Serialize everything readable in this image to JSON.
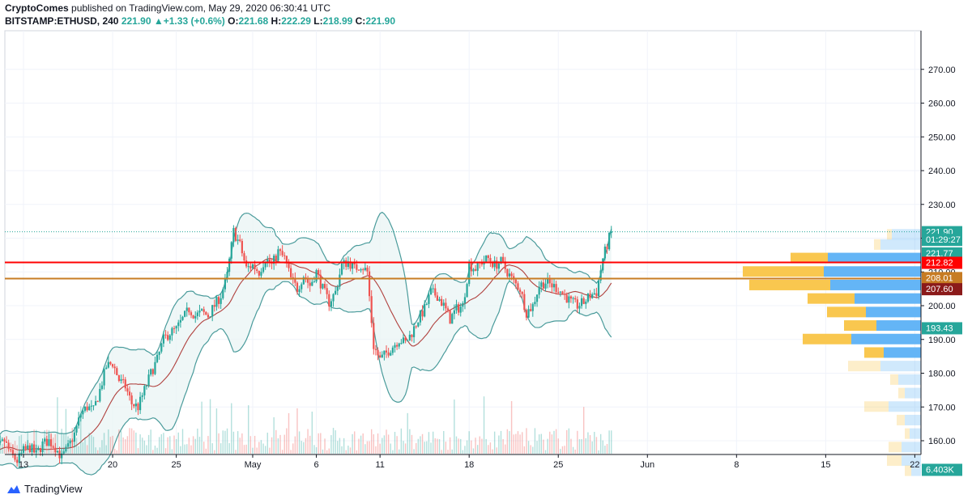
{
  "header": {
    "author": "CryptoComes",
    "published_text": "published on TradingView.com, May 29, 2020 06:30:41 UTC",
    "symbol": "BITSTAMP:ETHUSD, 240",
    "last": "221.90",
    "change": "+1.33 (+0.6%)",
    "o_label": "O:",
    "o": "221.68",
    "h_label": "H:",
    "h": "222.29",
    "l_label": "L:",
    "l": "218.99",
    "c_label": "C:",
    "c": "221.90"
  },
  "footer": {
    "brand": "TradingView"
  },
  "colors": {
    "up": "#26a69a",
    "down": "#ef5350",
    "band": "#4a9b9b",
    "basis": "#b0413e",
    "red_line": "#ff0000",
    "orange_line": "#c77c24",
    "vp_yellow": "#f9c74f",
    "vp_blue": "#64b5f6"
  },
  "chart_data": {
    "type": "candlestick",
    "symbol": "BITSTAMP:ETHUSD",
    "ylim": [
      150,
      272
    ],
    "yticks": [
      160,
      170,
      180,
      190,
      200,
      210,
      220,
      230,
      240,
      250,
      260,
      270
    ],
    "ytick_labels": [
      "160.00",
      "170.00",
      "180.00",
      "190.00",
      "200.00",
      "210.00",
      "220.00",
      "230.00",
      "240.00",
      "250.00",
      "260.00",
      "270.00"
    ],
    "xticks": [
      {
        "label": "13",
        "day": 13
      },
      {
        "label": "20",
        "day": 20
      },
      {
        "label": "25",
        "day": 25
      },
      {
        "label": "May",
        "day": 31
      },
      {
        "label": "6",
        "day": 36
      },
      {
        "label": "11",
        "day": 41
      },
      {
        "label": "18",
        "day": 48
      },
      {
        "label": "25",
        "day": 55
      },
      {
        "label": "Jun",
        "day": 62
      },
      {
        "label": "8",
        "day": 69
      },
      {
        "label": "15",
        "day": 76
      },
      {
        "label": "22",
        "day": 83
      }
    ],
    "day_axis_note": "",
    "horizontal_lines": [
      {
        "price": 212.82,
        "color": "#ff0000"
      },
      {
        "price": 208.01,
        "color": "#c77c24"
      }
    ],
    "last_price_line": 221.9,
    "price_labels": [
      {
        "text": "221.90",
        "price": 221.9,
        "color": "#26a69a"
      },
      {
        "text": "01:29:27",
        "price": 219.6,
        "color": "#26a69a"
      },
      {
        "text": "221.77",
        "price": 215.6,
        "color": "#26a69a"
      },
      {
        "text": "212.82",
        "price": 212.82,
        "color": "#ff0000"
      },
      {
        "text": "208.01",
        "price": 208.3,
        "color": "#c77c24"
      },
      {
        "text": "207.60",
        "price": 205.0,
        "color": "#8b1a1a"
      },
      {
        "text": "193.43",
        "price": 193.43,
        "color": "#26a69a"
      },
      {
        "text": "6.403K",
        "price": 151.5,
        "color": "#26a69a"
      }
    ],
    "close_path": [
      [
        10,
        157
      ],
      [
        10.5,
        155
      ],
      [
        11,
        158
      ],
      [
        11.5,
        160
      ],
      [
        12,
        156
      ],
      [
        12.5,
        154
      ],
      [
        13,
        157
      ],
      [
        13.5,
        158
      ],
      [
        14,
        156
      ],
      [
        14.5,
        159
      ],
      [
        15,
        160
      ],
      [
        15.5,
        158
      ],
      [
        16,
        155
      ],
      [
        16.5,
        158
      ],
      [
        17,
        162
      ],
      [
        17.5,
        168
      ],
      [
        18,
        170
      ],
      [
        18.5,
        169
      ],
      [
        19,
        175
      ],
      [
        19.5,
        182
      ],
      [
        20,
        183
      ],
      [
        20.5,
        178
      ],
      [
        21,
        176
      ],
      [
        21.5,
        171
      ],
      [
        22,
        170
      ],
      [
        22.5,
        175
      ],
      [
        23,
        180
      ],
      [
        23.5,
        184
      ],
      [
        24,
        190
      ],
      [
        24.5,
        192
      ],
      [
        25,
        193
      ],
      [
        25.5,
        196
      ],
      [
        26,
        199
      ],
      [
        26.5,
        197
      ],
      [
        27,
        198
      ],
      [
        27.5,
        197
      ],
      [
        28,
        200
      ],
      [
        28.5,
        203
      ],
      [
        29,
        209
      ],
      [
        29.5,
        222
      ],
      [
        30,
        218
      ],
      [
        30.5,
        211
      ],
      [
        31,
        212
      ],
      [
        31.5,
        210
      ],
      [
        32,
        214
      ],
      [
        32.5,
        212
      ],
      [
        33,
        216
      ],
      [
        33.5,
        214
      ],
      [
        34,
        208
      ],
      [
        34.5,
        205
      ],
      [
        35,
        209
      ],
      [
        35.5,
        206
      ],
      [
        36,
        210
      ],
      [
        36.5,
        205
      ],
      [
        37,
        201
      ],
      [
        37.5,
        204
      ],
      [
        38,
        212
      ],
      [
        38.5,
        213
      ],
      [
        39,
        211
      ],
      [
        39.5,
        212
      ],
      [
        40,
        210
      ],
      [
        40.5,
        188
      ],
      [
        41,
        184
      ],
      [
        41.5,
        186
      ],
      [
        42,
        188
      ],
      [
        42.5,
        190
      ],
      [
        43,
        189
      ],
      [
        43.5,
        192
      ],
      [
        44,
        196
      ],
      [
        44.5,
        199
      ],
      [
        45,
        204
      ],
      [
        45.5,
        203
      ],
      [
        46,
        200
      ],
      [
        46.5,
        196
      ],
      [
        47,
        199
      ],
      [
        47.5,
        200
      ],
      [
        48,
        212
      ],
      [
        48.5,
        211
      ],
      [
        49,
        213
      ],
      [
        49.5,
        214
      ],
      [
        50,
        212
      ],
      [
        50.5,
        213
      ],
      [
        51,
        210
      ],
      [
        51.5,
        207
      ],
      [
        52,
        205
      ],
      [
        52.5,
        198
      ],
      [
        53,
        200
      ],
      [
        53.5,
        206
      ],
      [
        54,
        207
      ],
      [
        54.5,
        206
      ],
      [
        55,
        205
      ],
      [
        55.5,
        203
      ],
      [
        56,
        201
      ],
      [
        56.5,
        200
      ],
      [
        57,
        201
      ],
      [
        57.5,
        203
      ],
      [
        58,
        204
      ],
      [
        58.5,
        214
      ],
      [
        59,
        220
      ],
      [
        59.2,
        221.9
      ]
    ],
    "volume_profile": [
      {
        "price": 221,
        "up": 6,
        "down": 36,
        "faded": true
      },
      {
        "price": 218,
        "up": 8,
        "down": 50,
        "faded": true
      },
      {
        "price": 214,
        "up": 46,
        "down": 115,
        "faded": false
      },
      {
        "price": 210,
        "up": 100,
        "down": 120,
        "faded": false
      },
      {
        "price": 206,
        "up": 100,
        "down": 112,
        "faded": false
      },
      {
        "price": 202,
        "up": 58,
        "down": 82,
        "faded": false
      },
      {
        "price": 198,
        "up": 48,
        "down": 68,
        "faded": false
      },
      {
        "price": 194,
        "up": 40,
        "down": 55,
        "faded": false
      },
      {
        "price": 190,
        "up": 60,
        "down": 86,
        "faded": false
      },
      {
        "price": 186,
        "up": 24,
        "down": 46,
        "faded": false
      },
      {
        "price": 182,
        "up": 40,
        "down": 50,
        "faded": true
      },
      {
        "price": 178,
        "up": 10,
        "down": 28,
        "faded": true
      },
      {
        "price": 174,
        "up": 8,
        "down": 20,
        "faded": true
      },
      {
        "price": 170,
        "up": 30,
        "down": 40,
        "faded": true
      },
      {
        "price": 166,
        "up": 10,
        "down": 20,
        "faded": true
      },
      {
        "price": 162,
        "up": 6,
        "down": 14,
        "faded": true
      },
      {
        "price": 158,
        "up": 16,
        "down": 24,
        "faded": true
      },
      {
        "price": 154,
        "up": 18,
        "down": 24,
        "faded": true
      },
      {
        "price": 151,
        "up": 8,
        "down": 12,
        "faded": true
      }
    ]
  }
}
